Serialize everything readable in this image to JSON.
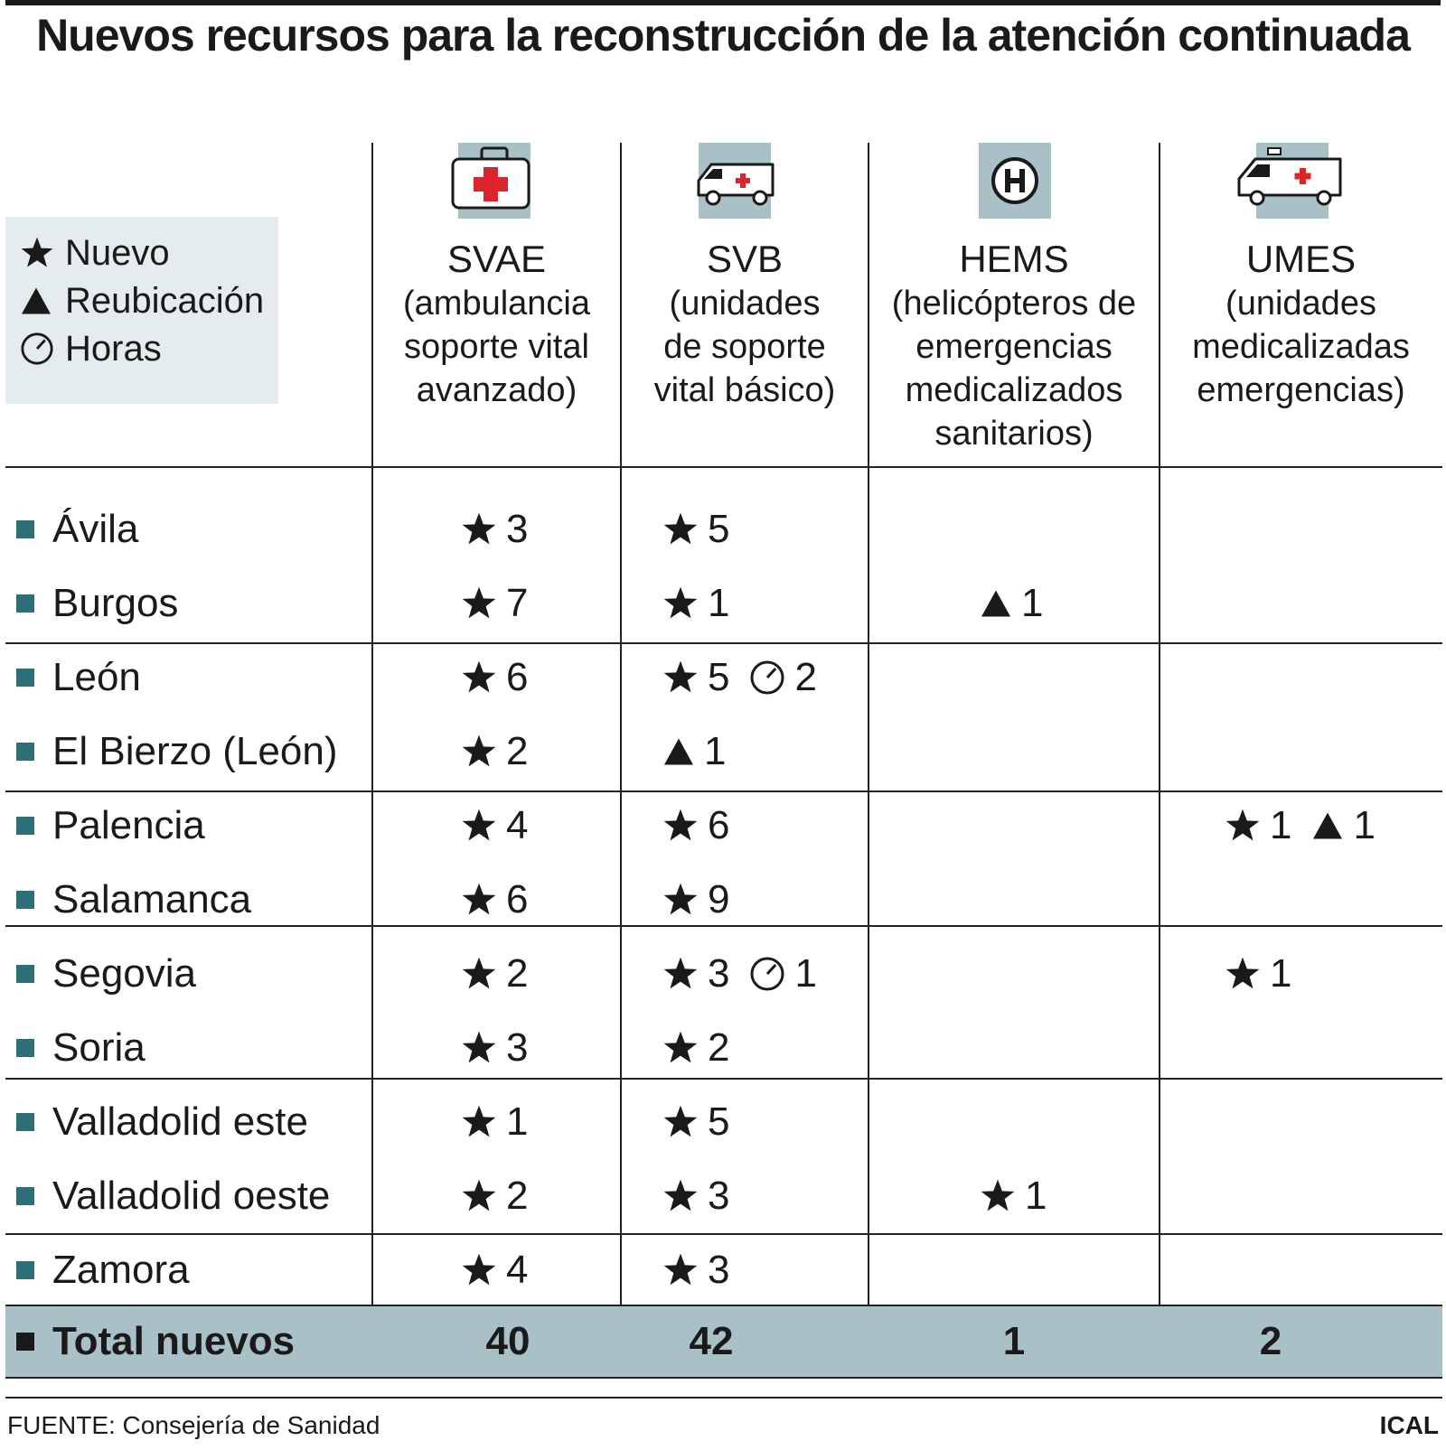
{
  "chart_data": {
    "type": "table",
    "title": "Nuevos recursos para la reconstrucción de la atención continuada",
    "legend": {
      "items": [
        {
          "icon": "star-icon",
          "label": "Nuevo"
        },
        {
          "icon": "triangle-icon",
          "label": "Reubicación"
        },
        {
          "icon": "clock-icon",
          "label": "Horas"
        }
      ]
    },
    "columns": [
      {
        "abbr": "SVAE",
        "desc": [
          "(ambulancia",
          "soporte vital",
          "avanzado)"
        ],
        "icon": "medical-kit-icon"
      },
      {
        "abbr": "SVB",
        "desc": [
          "(unidades",
          "de soporte",
          "vital básico)"
        ],
        "icon": "ambulance-icon"
      },
      {
        "abbr": "HEMS",
        "desc": [
          "(helicópteros de",
          "emergencias",
          "medicalizados",
          "sanitarios)"
        ],
        "icon": "helipad-icon"
      },
      {
        "abbr": "UMES",
        "desc": [
          "(unidades",
          "medicalizadas",
          "emergencias)"
        ],
        "icon": "medical-van-icon"
      }
    ],
    "rows": [
      {
        "label": "Ávila",
        "cells": [
          [
            {
              "type": "new",
              "value": "3"
            }
          ],
          [
            {
              "type": "new",
              "value": "5"
            }
          ],
          [],
          []
        ]
      },
      {
        "label": "Burgos",
        "cells": [
          [
            {
              "type": "new",
              "value": "7"
            }
          ],
          [
            {
              "type": "new",
              "value": "1"
            }
          ],
          [
            {
              "type": "relocation",
              "value": "1"
            }
          ],
          []
        ]
      },
      {
        "label": "León",
        "cells": [
          [
            {
              "type": "new",
              "value": "6"
            }
          ],
          [
            {
              "type": "new",
              "value": "5"
            },
            {
              "type": "hours",
              "value": "2"
            }
          ],
          [],
          []
        ]
      },
      {
        "label": "El Bierzo (León)",
        "cells": [
          [
            {
              "type": "new",
              "value": "2"
            }
          ],
          [
            {
              "type": "relocation",
              "value": "1"
            }
          ],
          [],
          []
        ]
      },
      {
        "label": "Palencia",
        "cells": [
          [
            {
              "type": "new",
              "value": "4"
            }
          ],
          [
            {
              "type": "new",
              "value": "6"
            }
          ],
          [],
          [
            {
              "type": "new",
              "value": "1"
            },
            {
              "type": "relocation",
              "value": "1"
            }
          ]
        ]
      },
      {
        "label": "Salamanca",
        "cells": [
          [
            {
              "type": "new",
              "value": "6"
            }
          ],
          [
            {
              "type": "new",
              "value": "9"
            }
          ],
          [],
          []
        ]
      },
      {
        "label": "Segovia",
        "cells": [
          [
            {
              "type": "new",
              "value": "2"
            }
          ],
          [
            {
              "type": "new",
              "value": "3"
            },
            {
              "type": "hours",
              "value": "1"
            }
          ],
          [],
          [
            {
              "type": "new",
              "value": "1"
            }
          ]
        ]
      },
      {
        "label": "Soria",
        "cells": [
          [
            {
              "type": "new",
              "value": "3"
            }
          ],
          [
            {
              "type": "new",
              "value": "2"
            }
          ],
          [],
          []
        ]
      },
      {
        "label": "Valladolid este",
        "cells": [
          [
            {
              "type": "new",
              "value": "1"
            }
          ],
          [
            {
              "type": "new",
              "value": "5"
            }
          ],
          [],
          []
        ]
      },
      {
        "label": "Valladolid oeste",
        "cells": [
          [
            {
              "type": "new",
              "value": "2"
            }
          ],
          [
            {
              "type": "new",
              "value": "3"
            }
          ],
          [
            {
              "type": "new",
              "value": "1"
            }
          ],
          []
        ]
      },
      {
        "label": "Zamora",
        "cells": [
          [
            {
              "type": "new",
              "value": "4"
            }
          ],
          [
            {
              "type": "new",
              "value": "3"
            }
          ],
          [],
          []
        ]
      }
    ],
    "totals": {
      "label": "Total nuevos",
      "values": [
        "40",
        "42",
        "1",
        "2"
      ]
    },
    "source": "FUENTE: Consejería de Sanidad",
    "credit": "ICAL",
    "colors": {
      "accent_band": "#a9c0c6",
      "legend_bg": "#e4ecee",
      "row_marker": "#2e6f77",
      "red_cross": "#d9252b"
    }
  }
}
